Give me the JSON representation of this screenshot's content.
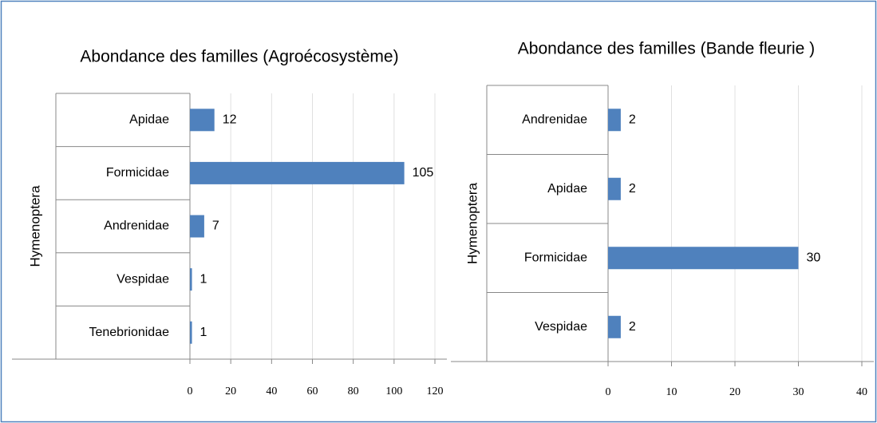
{
  "chart_data": [
    {
      "type": "bar",
      "orientation": "horizontal",
      "title": "Abondance des familles (Agroécosystème)",
      "group": "Hymenoptera",
      "categories": [
        "Apidae",
        "Formicidae",
        "Andrenidae",
        "Vespidae",
        "Tenebrionidae"
      ],
      "values": [
        12,
        105,
        7,
        1,
        1
      ],
      "color": "#4f81bd",
      "xlim": [
        0,
        120
      ],
      "xticks": [
        0,
        20,
        40,
        60,
        80,
        100,
        120
      ],
      "grid": true
    },
    {
      "type": "bar",
      "orientation": "horizontal",
      "title": "Abondance des familles (Bande fleurie )",
      "group": "Hymenoptera",
      "categories": [
        "Andrenidae",
        "Apidae",
        "Formicidae",
        "Vespidae"
      ],
      "values": [
        2,
        2,
        30,
        2
      ],
      "color": "#4f81bd",
      "xlim": [
        0,
        40
      ],
      "xticks": [
        0,
        10,
        20,
        30,
        40
      ],
      "grid": true
    }
  ]
}
